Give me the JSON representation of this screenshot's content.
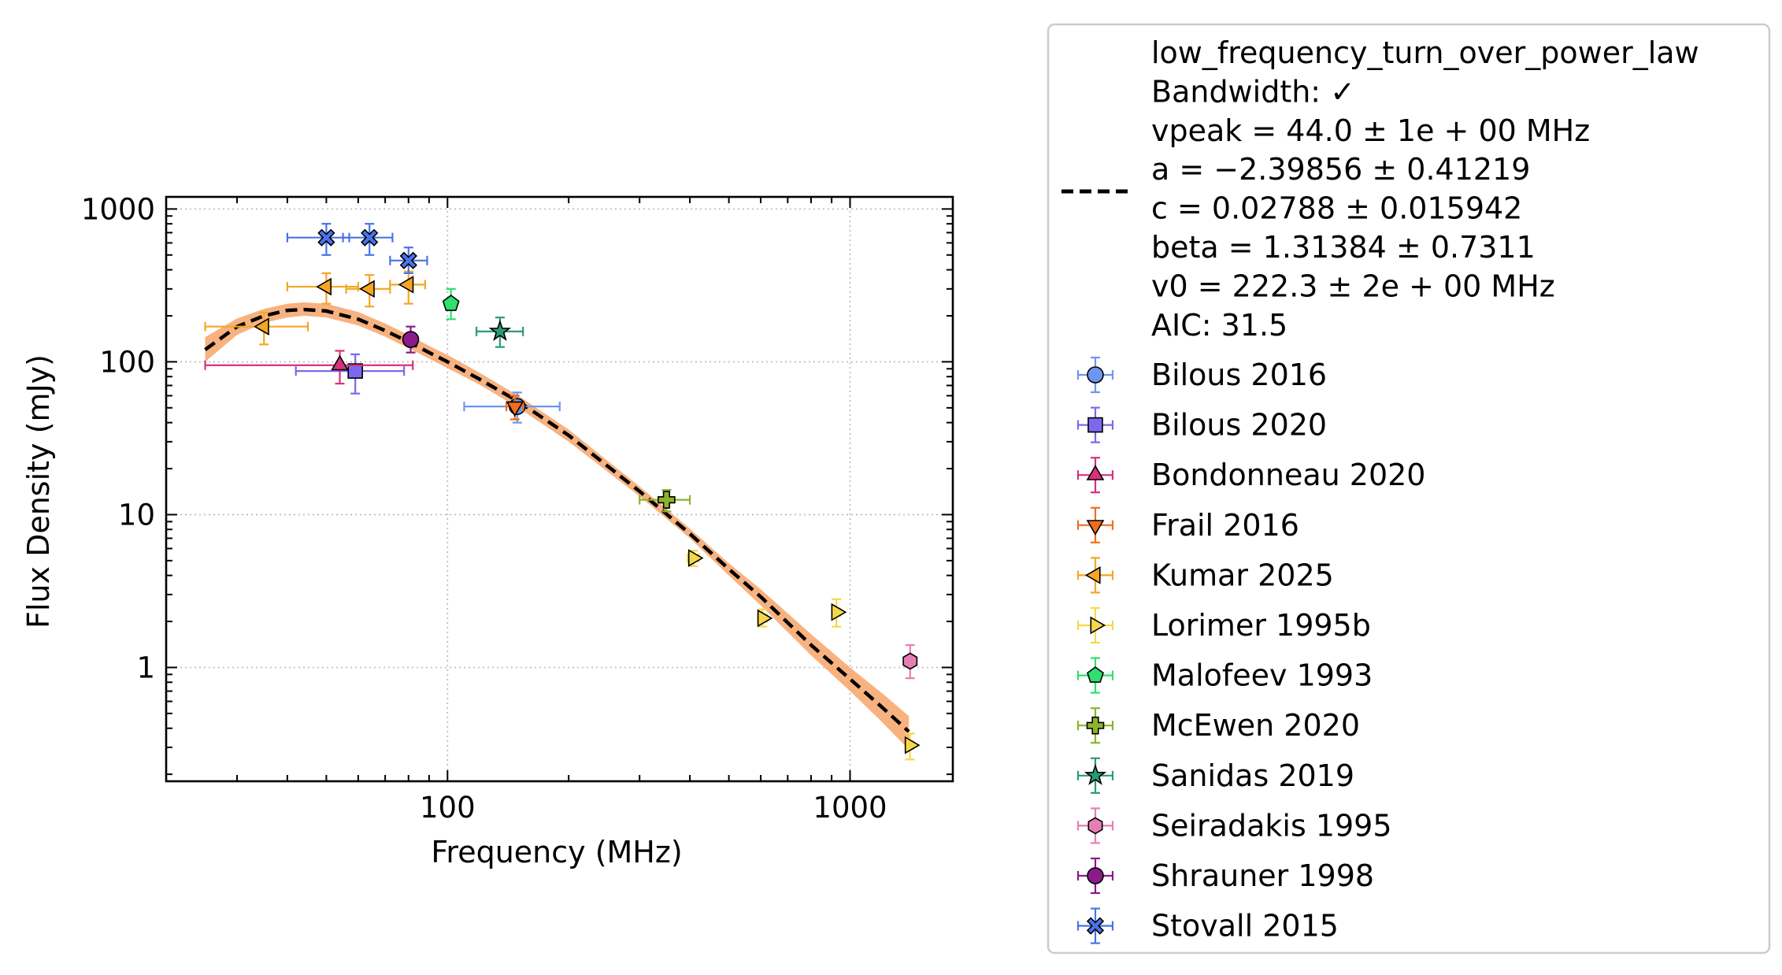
{
  "chart_data": {
    "type": "scatter",
    "xlabel": "Frequency (MHz)",
    "ylabel": "Flux Density (mJy)",
    "xscale": "log",
    "yscale": "log",
    "xlim": [
      20,
      1800
    ],
    "ylim": [
      0.18,
      1200
    ],
    "grid": true,
    "legend_placement": "outside-right",
    "x_ticks": [
      {
        "value": 100,
        "label": "100"
      },
      {
        "value": 1000,
        "label": "1000"
      }
    ],
    "y_ticks": [
      {
        "value": 1,
        "label": "1"
      },
      {
        "value": 10,
        "label": "10"
      },
      {
        "value": 100,
        "label": "100"
      },
      {
        "value": 1000,
        "label": "1000"
      }
    ],
    "fit": {
      "label_lines": [
        "low_frequency_turn_over_power_law",
        "Bandwidth: ✓",
        "vpeak = 44.0 ± 1e + 00 MHz",
        "a = −2.39856 ± 0.41219",
        "c = 0.02788 ± 0.015942",
        "beta = 1.31384 ± 0.7311",
        "v0 = 222.3 ± 2e + 00 MHz",
        "AIC: 31.5"
      ],
      "curve_color": "#000000",
      "band_color": "#f7a468",
      "x": [
        25,
        30,
        35,
        40,
        44,
        50,
        60,
        70,
        80,
        90,
        100,
        120,
        150,
        200,
        300,
        400,
        500,
        600,
        800,
        1000,
        1200,
        1400
      ],
      "y": [
        120,
        170,
        200,
        217,
        220,
        215,
        190,
        160,
        135,
        115,
        100,
        77,
        55,
        33,
        14.2,
        7.5,
        4.4,
        2.9,
        1.4,
        0.84,
        0.55,
        0.38
      ],
      "band_lower": [
        100,
        150,
        180,
        195,
        200,
        195,
        173,
        146,
        123,
        105,
        91,
        71,
        50,
        30,
        13.2,
        7.0,
        4.0,
        2.55,
        1.2,
        0.7,
        0.44,
        0.29
      ],
      "band_upper": [
        145,
        192,
        222,
        240,
        245,
        240,
        212,
        178,
        150,
        127,
        111,
        85,
        60,
        36,
        15.3,
        8.1,
        4.8,
        3.25,
        1.65,
        1.0,
        0.68,
        0.48
      ]
    },
    "series": [
      {
        "name": "Bilous 2016",
        "marker": "circle",
        "color": "#6e95f0",
        "points": [
          {
            "x": 149,
            "y": 51,
            "xlo": 110,
            "xhi": 190,
            "ylo": 40,
            "yhi": 63
          }
        ]
      },
      {
        "name": "Bilous 2020",
        "marker": "square",
        "color": "#7b68ee",
        "points": [
          {
            "x": 59,
            "y": 87,
            "xlo": 42,
            "xhi": 78,
            "ylo": 62,
            "yhi": 112
          }
        ]
      },
      {
        "name": "Bondonneau 2020",
        "marker": "triangle-up",
        "color": "#d6317a",
        "points": [
          {
            "x": 54,
            "y": 95,
            "xlo": 25,
            "xhi": 82,
            "ylo": 72,
            "yhi": 118
          }
        ]
      },
      {
        "name": "Frail 2016",
        "marker": "triangle-down",
        "color": "#f26d1b",
        "points": [
          {
            "x": 147,
            "y": 51,
            "xlo": 140,
            "xhi": 154,
            "ylo": 42,
            "yhi": 60
          }
        ]
      },
      {
        "name": "Kumar 2025",
        "marker": "triangle-left",
        "color": "#f5a623",
        "points": [
          {
            "x": 35,
            "y": 170,
            "xlo": 25,
            "xhi": 45,
            "ylo": 130,
            "yhi": 210
          },
          {
            "x": 50,
            "y": 310,
            "xlo": 40,
            "xhi": 60,
            "ylo": 240,
            "yhi": 380
          },
          {
            "x": 64,
            "y": 300,
            "xlo": 56,
            "xhi": 72,
            "ylo": 230,
            "yhi": 370
          },
          {
            "x": 80,
            "y": 320,
            "xlo": 72,
            "xhi": 88,
            "ylo": 240,
            "yhi": 390
          }
        ]
      },
      {
        "name": "Lorimer 1995b",
        "marker": "triangle-right",
        "color": "#f5d84a",
        "points": [
          {
            "x": 408,
            "y": 5.2,
            "xlo": 395,
            "xhi": 421,
            "ylo": 4.6,
            "yhi": 5.8
          },
          {
            "x": 606,
            "y": 2.1,
            "xlo": 590,
            "xhi": 622,
            "ylo": 1.85,
            "yhi": 2.4
          },
          {
            "x": 925,
            "y": 2.3,
            "xlo": 905,
            "xhi": 945,
            "ylo": 1.85,
            "yhi": 2.8
          },
          {
            "x": 1408,
            "y": 0.31,
            "xlo": 1380,
            "xhi": 1436,
            "ylo": 0.25,
            "yhi": 0.37
          }
        ]
      },
      {
        "name": "Malofeev 1993",
        "marker": "pentagon",
        "color": "#2ee06e",
        "points": [
          {
            "x": 102,
            "y": 240,
            "xlo": 99,
            "xhi": 105,
            "ylo": 190,
            "yhi": 300
          }
        ]
      },
      {
        "name": "McEwen 2020",
        "marker": "plus",
        "color": "#8db32c",
        "points": [
          {
            "x": 350,
            "y": 12.5,
            "xlo": 300,
            "xhi": 400,
            "ylo": 10.5,
            "yhi": 14.5
          }
        ]
      },
      {
        "name": "Sanidas 2019",
        "marker": "star",
        "color": "#2c9a78",
        "points": [
          {
            "x": 135,
            "y": 158,
            "xlo": 118,
            "xhi": 154,
            "ylo": 125,
            "yhi": 195
          }
        ]
      },
      {
        "name": "Seiradakis 1995",
        "marker": "hexagon",
        "color": "#e67fb1",
        "points": [
          {
            "x": 1410,
            "y": 1.1,
            "xlo": 1390,
            "xhi": 1430,
            "ylo": 0.85,
            "yhi": 1.4
          }
        ]
      },
      {
        "name": "Shrauner 1998",
        "marker": "circle",
        "color": "#8b1a8b",
        "points": [
          {
            "x": 81,
            "y": 140,
            "xlo": 78,
            "xhi": 84,
            "ylo": 115,
            "yhi": 170
          }
        ]
      },
      {
        "name": "Stovall 2015",
        "marker": "x-filled",
        "color": "#4a73e8",
        "points": [
          {
            "x": 50,
            "y": 650,
            "xlo": 40,
            "xhi": 57,
            "ylo": 500,
            "yhi": 800
          },
          {
            "x": 64,
            "y": 650,
            "xlo": 55,
            "xhi": 73,
            "ylo": 500,
            "yhi": 800
          },
          {
            "x": 80,
            "y": 460,
            "xlo": 72,
            "xhi": 89,
            "ylo": 380,
            "yhi": 560
          }
        ]
      }
    ]
  }
}
